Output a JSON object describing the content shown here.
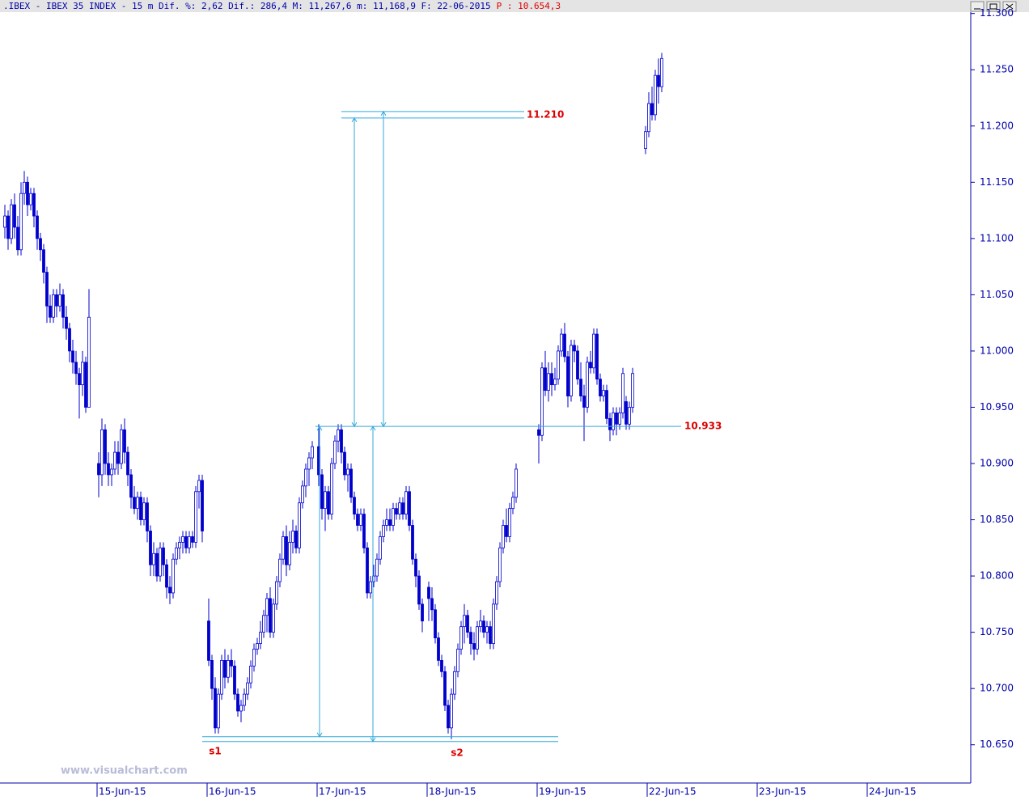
{
  "chart_data": {
    "type": "candlestick",
    "title": ".IBEX - IBEX 35 INDEX -  15 m Dif. %: 2,62 Dif.: 286,4 M: 11,267,6 m: 11,168,9 F: 22-06-2015",
    "subtitle": "P : 10.654,3",
    "watermark": "www.visualchart.com",
    "color": "#0000cc",
    "ylim": [
      10.616,
      11.312
    ],
    "yticks": [
      {
        "value": 10.65,
        "label": "10.650"
      },
      {
        "value": 10.7,
        "label": "10.700"
      },
      {
        "value": 10.75,
        "label": "10.750"
      },
      {
        "value": 10.8,
        "label": "10.800"
      },
      {
        "value": 10.85,
        "label": "10.850"
      },
      {
        "value": 10.9,
        "label": "10.900"
      },
      {
        "value": 10.95,
        "label": "10.950"
      },
      {
        "value": 11,
        "label": "11.000"
      },
      {
        "value": 11.05,
        "label": "11.050"
      },
      {
        "value": 11.1,
        "label": "11.100"
      },
      {
        "value": 11.15,
        "label": "11.150"
      },
      {
        "value": 11.2,
        "label": "11.200"
      },
      {
        "value": 11.25,
        "label": "11.250"
      },
      {
        "value": 11.3,
        "label": "11.300"
      }
    ],
    "xlim": [
      -30.5,
      269.5
    ],
    "xticks": [
      {
        "value": 0,
        "label": "15-Jun-15"
      },
      {
        "value": 34,
        "label": "16-Jun-15"
      },
      {
        "value": 68,
        "label": "17-Jun-15"
      },
      {
        "value": 102,
        "label": "18-Jun-15"
      },
      {
        "value": 136,
        "label": "19-Jun-15"
      },
      {
        "value": 170,
        "label": "22-Jun-15"
      },
      {
        "value": 204,
        "label": "23-Jun-15"
      },
      {
        "value": 238,
        "label": "24-Jun-15"
      }
    ],
    "levels": [
      {
        "value": 10.933,
        "label": "10.933"
      },
      {
        "value": 11.21,
        "label": "11.210"
      }
    ],
    "supports": [
      {
        "value": 10.655,
        "label": "s1"
      },
      {
        "value": 10.655,
        "label": "s2"
      }
    ],
    "x": [
      -29,
      -28,
      -27,
      -26,
      -25,
      -24,
      -23,
      -22,
      -21,
      -20,
      -19,
      -18,
      -17,
      -16,
      -15,
      -14,
      -13,
      -12,
      -11,
      -10,
      -9,
      -8,
      -7,
      -6,
      -5,
      -4,
      -3,
      0,
      1,
      2,
      3,
      4,
      5,
      6,
      7,
      8,
      9,
      10,
      11,
      12,
      13,
      14,
      15,
      16,
      17,
      18,
      19,
      20,
      21,
      22,
      23,
      24,
      25,
      26,
      27,
      28,
      29,
      30,
      31,
      32,
      34,
      35,
      36,
      37,
      38,
      39,
      40,
      41,
      42,
      43,
      44,
      45,
      46,
      47,
      48,
      49,
      50,
      51,
      52,
      53,
      54,
      55,
      56,
      57,
      58,
      59,
      60,
      61,
      62,
      63,
      64,
      65,
      66,
      68,
      69,
      70,
      71,
      72,
      73,
      74,
      75,
      76,
      77,
      78,
      79,
      80,
      81,
      82,
      83,
      84,
      85,
      86,
      87,
      88,
      89,
      90,
      91,
      92,
      93,
      94,
      95,
      96,
      97,
      98,
      99,
      100,
      102,
      103,
      104,
      105,
      106,
      107,
      108,
      109,
      110,
      111,
      112,
      113,
      114,
      115,
      116,
      117,
      118,
      119,
      120,
      121,
      122,
      123,
      124,
      125,
      126,
      127,
      128,
      129,
      136,
      137,
      138,
      139,
      140,
      141,
      142,
      143,
      144,
      145,
      146,
      147,
      148,
      149,
      150,
      151,
      152,
      153,
      154,
      155,
      156,
      157,
      158,
      159,
      160,
      161,
      162,
      163,
      164,
      165,
      169,
      170,
      171,
      172,
      173,
      174
    ],
    "candles": [
      [
        11.11,
        11.13,
        11.1,
        11.12
      ],
      [
        11.12,
        11.125,
        11.09,
        11.1
      ],
      [
        11.1,
        11.135,
        11.095,
        11.13
      ],
      [
        11.13,
        11.14,
        11.1,
        11.11
      ],
      [
        11.11,
        11.12,
        11.085,
        11.09
      ],
      [
        11.09,
        11.15,
        11.085,
        11.14
      ],
      [
        11.14,
        11.16,
        11.13,
        11.15
      ],
      [
        11.15,
        11.155,
        11.12,
        11.13
      ],
      [
        11.13,
        11.145,
        11.125,
        11.14
      ],
      [
        11.14,
        11.145,
        11.11,
        11.12
      ],
      [
        11.12,
        11.125,
        11.09,
        11.1
      ],
      [
        11.1,
        11.105,
        11.08,
        11.09
      ],
      [
        11.09,
        11.095,
        11.06,
        11.07
      ],
      [
        11.07,
        11.075,
        11.025,
        11.04
      ],
      [
        11.04,
        11.05,
        11.025,
        11.03
      ],
      [
        11.03,
        11.055,
        11.025,
        11.05
      ],
      [
        11.05,
        11.055,
        11.03,
        11.04
      ],
      [
        11.04,
        11.06,
        11.035,
        11.05
      ],
      [
        11.05,
        11.055,
        11.02,
        11.03
      ],
      [
        11.03,
        11.04,
        11.01,
        11.02
      ],
      [
        11.02,
        11.025,
        10.99,
        11
      ],
      [
        11,
        11.01,
        10.98,
        10.99
      ],
      [
        10.99,
        11,
        10.97,
        10.98
      ],
      [
        10.98,
        10.985,
        10.94,
        10.97
      ],
      [
        10.97,
        11,
        10.96,
        10.99
      ],
      [
        10.99,
        10.995,
        10.945,
        10.95
      ],
      [
        10.95,
        11.055,
        10.95,
        11.03
      ],
      [
        10.9,
        10.91,
        10.87,
        10.89
      ],
      [
        10.89,
        10.94,
        10.88,
        10.93
      ],
      [
        10.93,
        10.935,
        10.89,
        10.9
      ],
      [
        10.9,
        10.91,
        10.88,
        10.89
      ],
      [
        10.89,
        10.9,
        10.88,
        10.895
      ],
      [
        10.895,
        10.92,
        10.89,
        10.91
      ],
      [
        10.91,
        10.92,
        10.89,
        10.9
      ],
      [
        10.9,
        10.935,
        10.895,
        10.93
      ],
      [
        10.93,
        10.94,
        10.9,
        10.91
      ],
      [
        10.91,
        10.915,
        10.88,
        10.89
      ],
      [
        10.89,
        10.895,
        10.86,
        10.87
      ],
      [
        10.87,
        10.88,
        10.855,
        10.86
      ],
      [
        10.86,
        10.875,
        10.85,
        10.87
      ],
      [
        10.87,
        10.875,
        10.845,
        10.85
      ],
      [
        10.85,
        10.87,
        10.845,
        10.865
      ],
      [
        10.865,
        10.87,
        10.83,
        10.84
      ],
      [
        10.84,
        10.845,
        10.8,
        10.81
      ],
      [
        10.81,
        10.83,
        10.8,
        10.82
      ],
      [
        10.82,
        10.825,
        10.795,
        10.8
      ],
      [
        10.8,
        10.83,
        10.795,
        10.825
      ],
      [
        10.825,
        10.83,
        10.8,
        10.81
      ],
      [
        10.81,
        10.815,
        10.78,
        10.79
      ],
      [
        10.79,
        10.8,
        10.775,
        10.785
      ],
      [
        10.785,
        10.82,
        10.78,
        10.815
      ],
      [
        10.815,
        10.83,
        10.81,
        10.825
      ],
      [
        10.825,
        10.835,
        10.815,
        10.83
      ],
      [
        10.83,
        10.84,
        10.82,
        10.835
      ],
      [
        10.835,
        10.84,
        10.82,
        10.825
      ],
      [
        10.825,
        10.84,
        10.82,
        10.835
      ],
      [
        10.835,
        10.84,
        10.825,
        10.83
      ],
      [
        10.83,
        10.88,
        10.825,
        10.875
      ],
      [
        10.875,
        10.89,
        10.86,
        10.885
      ],
      [
        10.885,
        10.89,
        10.83,
        10.84
      ],
      [
        10.76,
        10.78,
        10.72,
        10.725
      ],
      [
        10.725,
        10.73,
        10.69,
        10.7
      ],
      [
        10.7,
        10.71,
        10.66,
        10.665
      ],
      [
        10.665,
        10.7,
        10.66,
        10.695
      ],
      [
        10.695,
        10.73,
        10.69,
        10.725
      ],
      [
        10.725,
        10.735,
        10.7,
        10.71
      ],
      [
        10.71,
        10.73,
        10.705,
        10.725
      ],
      [
        10.725,
        10.735,
        10.71,
        10.72
      ],
      [
        10.72,
        10.725,
        10.69,
        10.695
      ],
      [
        10.695,
        10.7,
        10.675,
        10.68
      ],
      [
        10.68,
        10.69,
        10.67,
        10.685
      ],
      [
        10.685,
        10.7,
        10.68,
        10.695
      ],
      [
        10.695,
        10.71,
        10.69,
        10.705
      ],
      [
        10.705,
        10.725,
        10.7,
        10.72
      ],
      [
        10.72,
        10.74,
        10.715,
        10.735
      ],
      [
        10.735,
        10.745,
        10.73,
        10.74
      ],
      [
        10.74,
        10.76,
        10.735,
        10.75
      ],
      [
        10.75,
        10.77,
        10.745,
        10.765
      ],
      [
        10.765,
        10.785,
        10.75,
        10.78
      ],
      [
        10.78,
        10.79,
        10.745,
        10.75
      ],
      [
        10.75,
        10.78,
        10.745,
        10.775
      ],
      [
        10.775,
        10.8,
        10.77,
        10.795
      ],
      [
        10.795,
        10.82,
        10.79,
        10.815
      ],
      [
        10.815,
        10.84,
        10.81,
        10.835
      ],
      [
        10.835,
        10.845,
        10.8,
        10.81
      ],
      [
        10.81,
        10.84,
        10.805,
        10.83
      ],
      [
        10.83,
        10.85,
        10.82,
        10.84
      ],
      [
        10.84,
        10.845,
        10.82,
        10.825
      ],
      [
        10.825,
        10.87,
        10.82,
        10.865
      ],
      [
        10.865,
        10.885,
        10.86,
        10.88
      ],
      [
        10.88,
        10.9,
        10.87,
        10.895
      ],
      [
        10.895,
        10.91,
        10.88,
        10.905
      ],
      [
        10.905,
        10.92,
        10.895,
        10.915
      ],
      [
        10.915,
        10.935,
        10.88,
        10.89
      ],
      [
        10.89,
        10.895,
        10.85,
        10.86
      ],
      [
        10.86,
        10.88,
        10.84,
        10.875
      ],
      [
        10.875,
        10.88,
        10.85,
        10.855
      ],
      [
        10.855,
        10.905,
        10.85,
        10.9
      ],
      [
        10.9,
        10.925,
        10.895,
        10.92
      ],
      [
        10.92,
        10.935,
        10.91,
        10.93
      ],
      [
        10.93,
        10.935,
        10.9,
        10.91
      ],
      [
        10.91,
        10.915,
        10.885,
        10.89
      ],
      [
        10.89,
        10.9,
        10.875,
        10.895
      ],
      [
        10.895,
        10.9,
        10.865,
        10.87
      ],
      [
        10.87,
        10.875,
        10.85,
        10.855
      ],
      [
        10.855,
        10.86,
        10.84,
        10.845
      ],
      [
        10.845,
        10.86,
        10.84,
        10.855
      ],
      [
        10.855,
        10.86,
        10.82,
        10.825
      ],
      [
        10.825,
        10.83,
        10.78,
        10.785
      ],
      [
        10.785,
        10.8,
        10.78,
        10.795
      ],
      [
        10.795,
        10.81,
        10.79,
        10.8
      ],
      [
        10.8,
        10.82,
        10.795,
        10.815
      ],
      [
        10.815,
        10.84,
        10.81,
        10.835
      ],
      [
        10.835,
        10.85,
        10.83,
        10.845
      ],
      [
        10.845,
        10.86,
        10.84,
        10.85
      ],
      [
        10.85,
        10.86,
        10.84,
        10.845
      ],
      [
        10.845,
        10.865,
        10.84,
        10.86
      ],
      [
        10.86,
        10.865,
        10.85,
        10.855
      ],
      [
        10.855,
        10.87,
        10.85,
        10.865
      ],
      [
        10.865,
        10.87,
        10.85,
        10.855
      ],
      [
        10.855,
        10.88,
        10.85,
        10.875
      ],
      [
        10.875,
        10.88,
        10.84,
        10.845
      ],
      [
        10.845,
        10.85,
        10.81,
        10.815
      ],
      [
        10.815,
        10.82,
        10.79,
        10.8
      ],
      [
        10.8,
        10.805,
        10.77,
        10.775
      ],
      [
        10.775,
        10.78,
        10.75,
        10.76
      ],
      [
        10.79,
        10.795,
        10.76,
        10.78
      ],
      [
        10.78,
        10.79,
        10.76,
        10.77
      ],
      [
        10.77,
        10.775,
        10.74,
        10.745
      ],
      [
        10.745,
        10.75,
        10.72,
        10.725
      ],
      [
        10.725,
        10.73,
        10.71,
        10.715
      ],
      [
        10.715,
        10.72,
        10.68,
        10.685
      ],
      [
        10.685,
        10.69,
        10.66,
        10.665
      ],
      [
        10.665,
        10.7,
        10.655,
        10.695
      ],
      [
        10.695,
        10.72,
        10.69,
        10.715
      ],
      [
        10.715,
        10.74,
        10.71,
        10.735
      ],
      [
        10.735,
        10.76,
        10.73,
        10.755
      ],
      [
        10.755,
        10.775,
        10.74,
        10.765
      ],
      [
        10.765,
        10.77,
        10.745,
        10.75
      ],
      [
        10.75,
        10.755,
        10.73,
        10.74
      ],
      [
        10.74,
        10.75,
        10.725,
        10.735
      ],
      [
        10.735,
        10.76,
        10.73,
        10.755
      ],
      [
        10.755,
        10.77,
        10.75,
        10.76
      ],
      [
        10.76,
        10.765,
        10.745,
        10.75
      ],
      [
        10.75,
        10.76,
        10.74,
        10.755
      ],
      [
        10.755,
        10.76,
        10.735,
        10.74
      ],
      [
        10.74,
        10.78,
        10.735,
        10.775
      ],
      [
        10.775,
        10.8,
        10.77,
        10.795
      ],
      [
        10.795,
        10.83,
        10.79,
        10.825
      ],
      [
        10.825,
        10.85,
        10.82,
        10.845
      ],
      [
        10.845,
        10.86,
        10.83,
        10.835
      ],
      [
        10.835,
        10.865,
        10.83,
        10.86
      ],
      [
        10.86,
        10.875,
        10.855,
        10.87
      ],
      [
        10.87,
        10.9,
        10.865,
        10.895
      ],
      [
        10.93,
        10.935,
        10.9,
        10.925
      ],
      [
        10.925,
        10.99,
        10.92,
        10.985
      ],
      [
        10.985,
        11,
        10.96,
        10.965
      ],
      [
        10.965,
        10.99,
        10.955,
        10.98
      ],
      [
        10.98,
        10.99,
        10.96,
        10.97
      ],
      [
        10.97,
        10.985,
        10.965,
        10.975
      ],
      [
        10.975,
        11.005,
        10.97,
        11
      ],
      [
        11,
        11.02,
        10.995,
        11.015
      ],
      [
        11.015,
        11.025,
        10.99,
        10.995
      ],
      [
        10.995,
        11,
        10.95,
        10.96
      ],
      [
        10.96,
        11.01,
        10.955,
        11.005
      ],
      [
        11.005,
        11.01,
        10.99,
        11
      ],
      [
        11,
        11.005,
        10.97,
        10.975
      ],
      [
        10.975,
        10.99,
        10.955,
        10.96
      ],
      [
        10.96,
        10.97,
        10.92,
        10.95
      ],
      [
        10.95,
        10.995,
        10.945,
        10.99
      ],
      [
        10.99,
        11,
        10.98,
        10.985
      ],
      [
        10.985,
        11.02,
        10.98,
        11.015
      ],
      [
        11.015,
        11.02,
        10.97,
        10.975
      ],
      [
        10.975,
        10.98,
        10.955,
        10.96
      ],
      [
        10.96,
        10.97,
        10.955,
        10.965
      ],
      [
        10.965,
        10.97,
        10.935,
        10.94
      ],
      [
        10.94,
        10.945,
        10.92,
        10.93
      ],
      [
        10.93,
        10.95,
        10.925,
        10.945
      ],
      [
        10.945,
        10.95,
        10.925,
        10.935
      ],
      [
        10.935,
        10.95,
        10.93,
        10.945
      ],
      [
        10.945,
        10.985,
        10.94,
        10.98
      ],
      [
        10.955,
        10.96,
        10.93,
        10.935
      ],
      [
        10.935,
        10.955,
        10.93,
        10.95
      ],
      [
        10.95,
        10.985,
        10.945,
        10.98
      ],
      [
        11.18,
        11.2,
        11.175,
        11.195
      ],
      [
        11.195,
        11.23,
        11.19,
        11.22
      ],
      [
        11.22,
        11.235,
        11.205,
        11.21
      ],
      [
        11.21,
        11.25,
        11.205,
        11.245
      ],
      [
        11.245,
        11.26,
        11.22,
        11.235
      ],
      [
        11.235,
        11.265,
        11.23,
        11.26
      ]
    ]
  }
}
